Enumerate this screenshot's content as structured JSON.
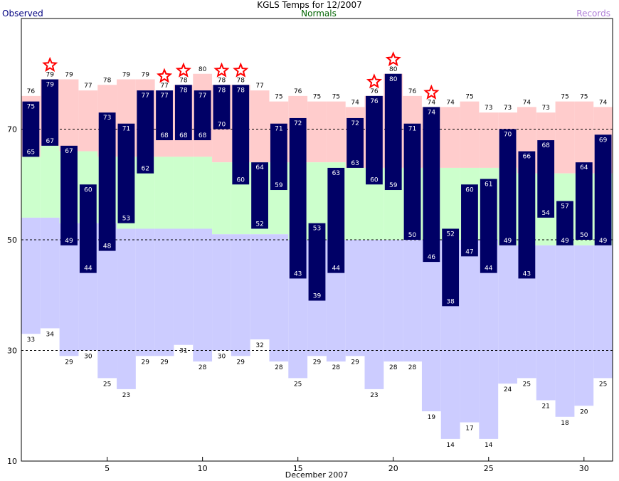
{
  "header": {
    "title": "KGLS Temps for 12/2007",
    "legend_observed": "Observed",
    "legend_normals": "Normals",
    "legend_records": "Records"
  },
  "colors": {
    "observed_bar": "#000066",
    "normal_high_band": "#ccffcc",
    "normal_low_band": "#ccccff",
    "record_high_band": "#ffcccc",
    "star": "#ff0000",
    "gridline": "#000000"
  },
  "chart_data": {
    "type": "bar",
    "title": "KGLS Temps for 12/2007",
    "xlabel": "December 2007",
    "ylabel": "",
    "x": [
      1,
      2,
      3,
      4,
      5,
      6,
      7,
      8,
      9,
      10,
      11,
      12,
      13,
      14,
      15,
      16,
      17,
      18,
      19,
      20,
      21,
      22,
      23,
      24,
      25,
      26,
      27,
      28,
      29,
      30,
      31
    ],
    "xlim": [
      0.5,
      31.5
    ],
    "ylim": [
      10,
      90
    ],
    "x_ticks": [
      5,
      10,
      15,
      20,
      25,
      30
    ],
    "y_ticks": [
      10,
      30,
      50,
      70
    ],
    "dashed_gridlines_y": [
      30,
      50,
      70
    ],
    "series": [
      {
        "name": "Observed",
        "role": "observed_high",
        "values": [
          75,
          79,
          67,
          60,
          73,
          71,
          77,
          77,
          78,
          77,
          78,
          78,
          64,
          71,
          72,
          53,
          63,
          72,
          76,
          80,
          71,
          74,
          52,
          60,
          61,
          70,
          66,
          68,
          57,
          64,
          69
        ]
      },
      {
        "name": "Observed",
        "role": "observed_low",
        "values": [
          65,
          67,
          49,
          44,
          48,
          53,
          62,
          68,
          68,
          68,
          70,
          60,
          52,
          59,
          43,
          39,
          44,
          63,
          60,
          59,
          50,
          46,
          38,
          47,
          44,
          49,
          43,
          54,
          49,
          50,
          49
        ]
      },
      {
        "name": "Normals",
        "role": "normal_high",
        "values": [
          65,
          67,
          66,
          66,
          65,
          65,
          65,
          65,
          65,
          65,
          64,
          64,
          64,
          64,
          64,
          64,
          64,
          63,
          63,
          63,
          63,
          63,
          63,
          63,
          63,
          63,
          62,
          62,
          62,
          62,
          62
        ]
      },
      {
        "name": "Normals",
        "role": "normal_low",
        "values": [
          54,
          54,
          53,
          53,
          53,
          52,
          52,
          52,
          52,
          52,
          51,
          51,
          51,
          51,
          50,
          50,
          50,
          50,
          50,
          50,
          50,
          50,
          50,
          50,
          50,
          49,
          49,
          49,
          49,
          49,
          49
        ]
      },
      {
        "name": "Records",
        "role": "record_high",
        "values": [
          76,
          79,
          79,
          77,
          78,
          79,
          79,
          77,
          78,
          80,
          78,
          78,
          77,
          75,
          76,
          75,
          75,
          74,
          76,
          80,
          76,
          74,
          74,
          75,
          73,
          73,
          74,
          73,
          75,
          75,
          74
        ]
      },
      {
        "name": "Records",
        "role": "record_low",
        "values": [
          33,
          34,
          29,
          30,
          25,
          23,
          29,
          29,
          31,
          28,
          30,
          29,
          32,
          28,
          25,
          29,
          28,
          29,
          23,
          28,
          28,
          19,
          14,
          17,
          14,
          24,
          25,
          21,
          18,
          20,
          25
        ]
      }
    ],
    "record_high_stars": [
      2,
      8,
      9,
      11,
      12,
      19,
      20,
      22
    ]
  }
}
